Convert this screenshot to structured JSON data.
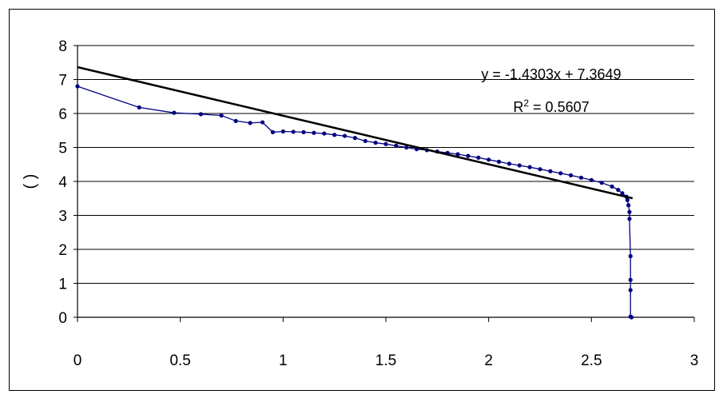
{
  "chart_data": {
    "type": "scatter",
    "title": "",
    "xlabel": "",
    "ylabel": "(   )",
    "xlim": [
      0,
      3
    ],
    "ylim": [
      0,
      8
    ],
    "x_ticks": [
      "0",
      "0.5",
      "1",
      "1.5",
      "2",
      "2.5",
      "3"
    ],
    "y_ticks": [
      "0",
      "1",
      "2",
      "3",
      "4",
      "5",
      "6",
      "7",
      "8"
    ],
    "grid": "horizontal",
    "legend": "none",
    "colors": {
      "series": "#000080",
      "trendline": "#000000"
    },
    "trendline": {
      "type": "linear",
      "slope": -1.4303,
      "intercept": 7.3649,
      "x_range": [
        0,
        2.7
      ],
      "equation_label": "y = -1.4303x + 7.3649",
      "r2_prefix": "R",
      "r2_sup": "2",
      "r2_suffix": " = 0.5607"
    },
    "series": [
      {
        "x": [
          0,
          0.3,
          0.47,
          0.6,
          0.7,
          0.77,
          0.84,
          0.9,
          0.95,
          1.0,
          1.05,
          1.1,
          1.15,
          1.2,
          1.25,
          1.3,
          1.35,
          1.4,
          1.45,
          1.5,
          1.55,
          1.6,
          1.65,
          1.7,
          1.75,
          1.8,
          1.85,
          1.9,
          1.95,
          2.0,
          2.05,
          2.1,
          2.15,
          2.2,
          2.25,
          2.3,
          2.35,
          2.4,
          2.45,
          2.5,
          2.55,
          2.6,
          2.63,
          2.65,
          2.67,
          2.675,
          2.68,
          2.685,
          2.685,
          2.69,
          2.69,
          2.69,
          2.69,
          2.695
        ],
        "y": [
          6.8,
          6.18,
          6.02,
          5.98,
          5.94,
          5.78,
          5.72,
          5.74,
          5.45,
          5.47,
          5.46,
          5.45,
          5.43,
          5.41,
          5.37,
          5.34,
          5.28,
          5.19,
          5.14,
          5.1,
          5.05,
          5.0,
          4.95,
          4.92,
          4.88,
          4.84,
          4.8,
          4.75,
          4.7,
          4.64,
          4.58,
          4.52,
          4.47,
          4.42,
          4.36,
          4.3,
          4.24,
          4.18,
          4.11,
          4.04,
          3.96,
          3.85,
          3.75,
          3.65,
          3.55,
          3.45,
          3.3,
          3.1,
          2.9,
          1.8,
          1.1,
          0.8,
          0.02,
          0.0
        ]
      }
    ]
  }
}
